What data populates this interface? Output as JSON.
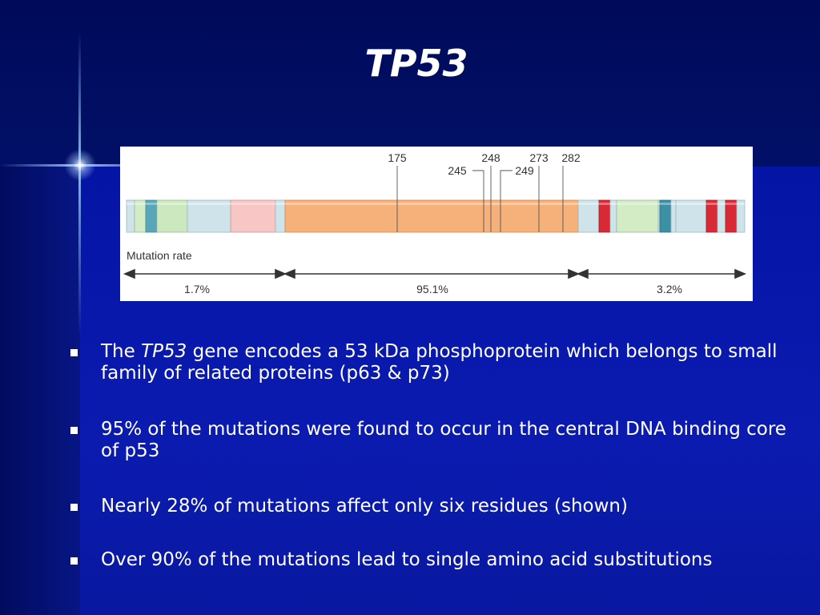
{
  "slide": {
    "title": "TP53"
  },
  "figure": {
    "residues": [
      "175",
      "245",
      "248",
      "249",
      "273",
      "282"
    ],
    "mutation_rate_label": "Mutation rate",
    "segments": [
      {
        "label": "1.7%"
      },
      {
        "label": "95.1%"
      },
      {
        "label": "3.2%"
      }
    ],
    "colors": {
      "core": "#f6b07a",
      "light_blue": "#cfe4ea",
      "light_green": "#d3ecc6",
      "pink": "#f8c6c4",
      "teal": "#3d8fa3",
      "red": "#d82a36"
    }
  },
  "bullets": [
    {
      "pre": "The ",
      "italic": "TP53",
      "post": " gene encodes a 53 kDa phosphoprotein which belongs to small family of related proteins (p63 & p73)"
    },
    {
      "text": "95% of the mutations were found to occur in the central DNA binding core of p53"
    },
    {
      "text": "Nearly 28% of mutations affect only six residues (shown)"
    },
    {
      "text": "Over 90% of the mutations lead to single amino acid substitutions"
    }
  ]
}
